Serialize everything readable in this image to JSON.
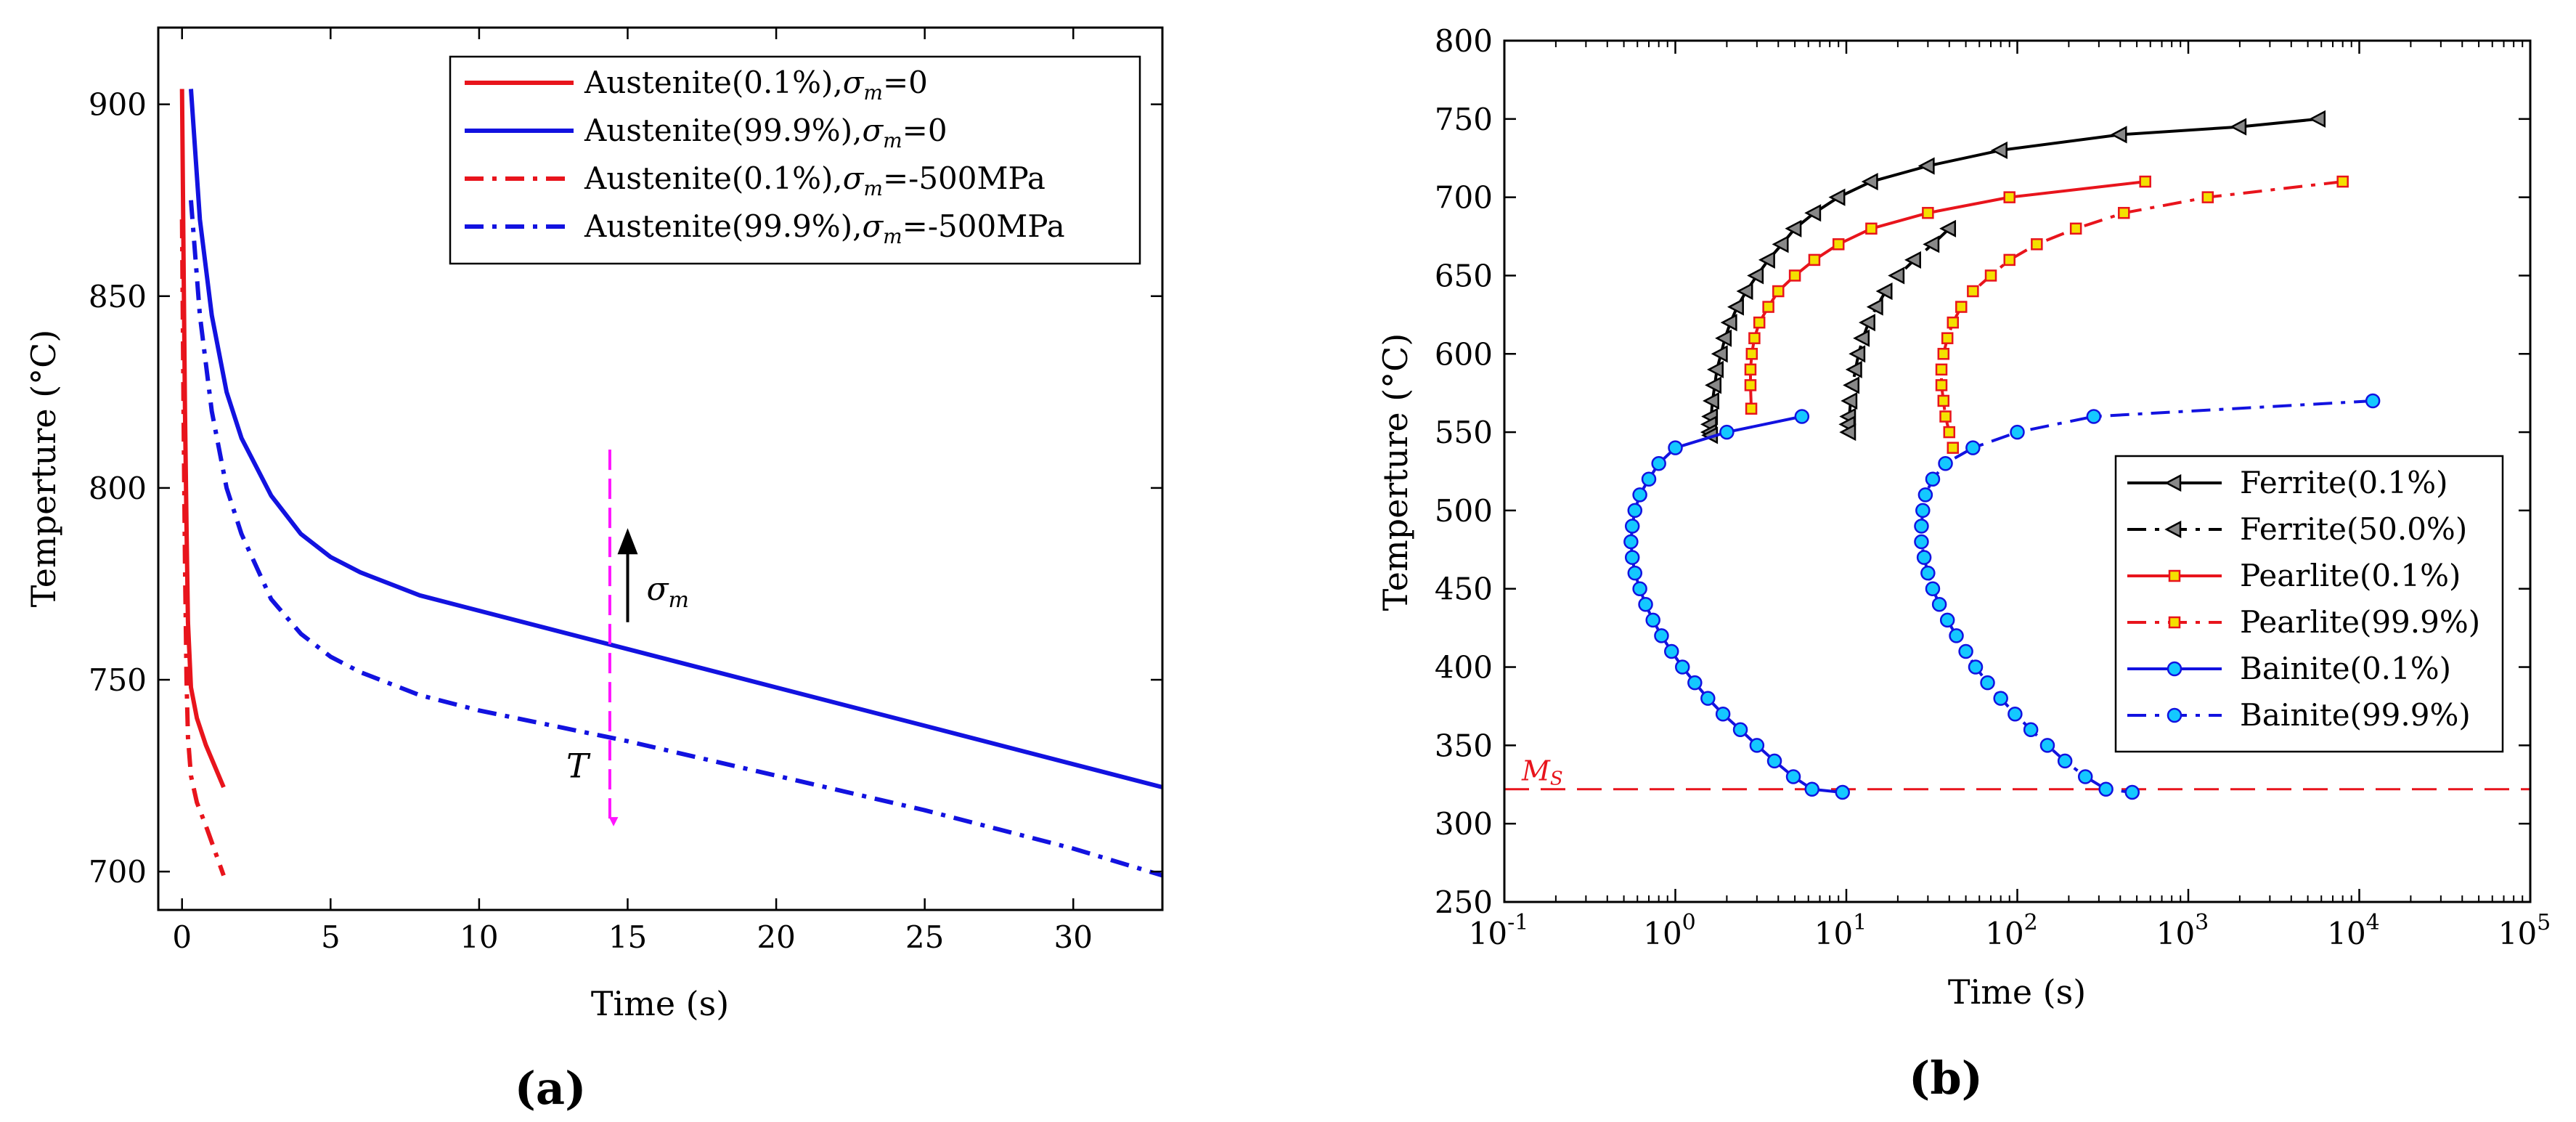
{
  "chart_data": [
    {
      "panel_label": "(a)",
      "type": "line",
      "xlabel": "Time (s)",
      "ylabel": "Temperture (°C)",
      "xlim": [
        -0.8,
        33
      ],
      "ylim": [
        690,
        920
      ],
      "xticks": [
        0,
        5,
        10,
        15,
        20,
        25,
        30
      ],
      "yticks": [
        700,
        750,
        800,
        850,
        900
      ],
      "grid": false,
      "legend_position": "top-right",
      "series": [
        {
          "name": "Austenite(0.1%),σm=0",
          "label_main": "Austenite(0.1%),",
          "label_sym": "σ",
          "label_sub": "m",
          "label_tail": "=0",
          "color": "#e8141c",
          "dash": "solid",
          "x": [
            0,
            0.05,
            0.1,
            0.15,
            0.2,
            0.3,
            0.5,
            0.8,
            1.4
          ],
          "y": [
            904,
            860,
            820,
            790,
            765,
            748,
            740,
            733,
            722
          ]
        },
        {
          "name": "Austenite(99.9%),σm=0",
          "label_main": "Austenite(99.9%),",
          "label_sym": "σ",
          "label_sub": "m",
          "label_tail": "=0",
          "color": "#1212e0",
          "dash": "solid",
          "x": [
            0.3,
            0.6,
            1,
            1.5,
            2,
            3,
            4,
            5,
            6,
            8,
            10,
            15,
            20,
            25,
            30,
            33
          ],
          "y": [
            904,
            870,
            845,
            825,
            813,
            798,
            788,
            782,
            778,
            772,
            768,
            758,
            748,
            738,
            728,
            722
          ]
        },
        {
          "name": "Austenite(0.1%),σm=-500MPa",
          "label_main": "Austenite(0.1%),",
          "label_sym": "σ",
          "label_sub": "m",
          "label_tail": "=-500MPa",
          "color": "#e8141c",
          "dash": "dashdot",
          "x": [
            0,
            0.05,
            0.1,
            0.15,
            0.2,
            0.3,
            0.5,
            0.8,
            1.4
          ],
          "y": [
            870,
            820,
            780,
            750,
            735,
            725,
            718,
            712,
            699
          ]
        },
        {
          "name": "Austenite(99.9%),σm=-500MPa",
          "label_main": "Austenite(99.9%),",
          "label_sym": "σ",
          "label_sub": "m",
          "label_tail": "=-500MPa",
          "color": "#1212e0",
          "dash": "dashdot",
          "x": [
            0.3,
            0.6,
            1,
            1.5,
            2,
            3,
            4,
            5,
            6,
            8,
            10,
            15,
            20,
            25,
            30,
            33
          ],
          "y": [
            875,
            845,
            820,
            800,
            788,
            771,
            762,
            756,
            752,
            746,
            742,
            734,
            725,
            716,
            706,
            699
          ]
        }
      ],
      "annotations": {
        "sigma_arrow_label": "σ",
        "sigma_arrow_sub": "m",
        "T_label": "T",
        "magenta_line_x": 14.4,
        "magenta_line_y": [
          810,
          713
        ],
        "sigma_arrow_x": 15,
        "sigma_arrow_y": [
          765,
          788
        ],
        "magenta_color": "#ff14ff"
      }
    },
    {
      "panel_label": "(b)",
      "type": "line",
      "xscale": "log",
      "xlabel": "Time (s)",
      "ylabel": "Temperture (°C)",
      "xlim": [
        0.1,
        100000
      ],
      "ylim": [
        250,
        800
      ],
      "xticks": [
        {
          "base": "10",
          "exp": "-1",
          "value": 0.1
        },
        {
          "base": "10",
          "exp": "0",
          "value": 1
        },
        {
          "base": "10",
          "exp": "1",
          "value": 10
        },
        {
          "base": "10",
          "exp": "2",
          "value": 100
        },
        {
          "base": "10",
          "exp": "3",
          "value": 1000
        },
        {
          "base": "10",
          "exp": "4",
          "value": 10000
        },
        {
          "base": "10",
          "exp": "5",
          "value": 100000
        }
      ],
      "yticks": [
        250,
        300,
        350,
        400,
        450,
        500,
        550,
        600,
        650,
        700,
        750,
        800
      ],
      "grid": false,
      "legend_position": "bottom-right",
      "ms_line": {
        "value": 322,
        "label_main": "M",
        "label_sub": "S",
        "color": "#e8141c"
      },
      "series": [
        {
          "name": "Ferrite(0.1%)",
          "color": "#000000",
          "dash": "solid",
          "marker": "triangle-left",
          "marker_fill": "#888888",
          "x": [
            5800,
            2000,
            400,
            80,
            30,
            14,
            9,
            6.5,
            5,
            4.2,
            3.5,
            3,
            2.6,
            2.3,
            2.1,
            1.95,
            1.85,
            1.75,
            1.7,
            1.65,
            1.62,
            1.6,
            1.6,
            1.62
          ],
          "y": [
            750,
            745,
            740,
            730,
            720,
            710,
            700,
            690,
            680,
            670,
            660,
            650,
            640,
            630,
            620,
            610,
            600,
            590,
            580,
            570,
            560,
            555,
            550,
            548
          ]
        },
        {
          "name": "Ferrite(50.0%)",
          "color": "#000000",
          "dash": "dashdot",
          "marker": "triangle-left",
          "marker_fill": "#888888",
          "x": [
            40,
            32,
            25,
            20,
            17,
            15,
            13.5,
            12.5,
            11.8,
            11.3,
            10.9,
            10.6,
            10.4,
            10.3,
            10.4
          ],
          "y": [
            680,
            670,
            660,
            650,
            640,
            630,
            620,
            610,
            600,
            590,
            580,
            570,
            560,
            555,
            550
          ]
        },
        {
          "name": "Pearlite(0.1%)",
          "color": "#e8141c",
          "dash": "solid",
          "marker": "square",
          "marker_fill": "#f4e000",
          "x": [
            560,
            90,
            30,
            14,
            9,
            6.5,
            5,
            4,
            3.5,
            3.1,
            2.9,
            2.8,
            2.75,
            2.75,
            2.78
          ],
          "y": [
            710,
            700,
            690,
            680,
            670,
            660,
            650,
            640,
            630,
            620,
            610,
            600,
            590,
            580,
            565
          ]
        },
        {
          "name": "Pearlite(99.9%)",
          "color": "#e8141c",
          "dash": "dashdot",
          "marker": "square",
          "marker_fill": "#f4e000",
          "x": [
            8000,
            1300,
            420,
            220,
            130,
            90,
            70,
            55,
            47,
            42,
            39,
            37,
            36,
            36,
            37,
            38,
            40,
            42
          ],
          "y": [
            710,
            700,
            690,
            680,
            670,
            660,
            650,
            640,
            630,
            620,
            610,
            600,
            590,
            580,
            570,
            560,
            550,
            540
          ]
        },
        {
          "name": "Bainite(0.1%)",
          "color": "#1212e0",
          "dash": "solid",
          "marker": "circle",
          "marker_fill": "#14c8ff",
          "x": [
            5.5,
            2,
            1,
            0.8,
            0.7,
            0.62,
            0.58,
            0.56,
            0.55,
            0.56,
            0.58,
            0.62,
            0.67,
            0.74,
            0.83,
            0.95,
            1.1,
            1.3,
            1.55,
            1.9,
            2.4,
            3,
            3.8,
            4.9,
            6.3,
            9.5
          ],
          "y": [
            560,
            550,
            540,
            530,
            520,
            510,
            500,
            490,
            480,
            470,
            460,
            450,
            440,
            430,
            420,
            410,
            400,
            390,
            380,
            370,
            360,
            350,
            340,
            330,
            322,
            320
          ]
        },
        {
          "name": "Bainite(99.9%)",
          "color": "#1212e0",
          "dash": "dashdot",
          "marker": "circle",
          "marker_fill": "#14c8ff",
          "x": [
            12000,
            280,
            100,
            55,
            38,
            32,
            29,
            28,
            27.5,
            27.5,
            28.5,
            30,
            32,
            35,
            39,
            44,
            50,
            57,
            67,
            80,
            97,
            120,
            150,
            190,
            250,
            330,
            470
          ],
          "y": [
            570,
            560,
            550,
            540,
            530,
            520,
            510,
            500,
            490,
            480,
            470,
            460,
            450,
            440,
            430,
            420,
            410,
            400,
            390,
            380,
            370,
            360,
            350,
            340,
            330,
            322,
            320
          ]
        }
      ]
    }
  ]
}
